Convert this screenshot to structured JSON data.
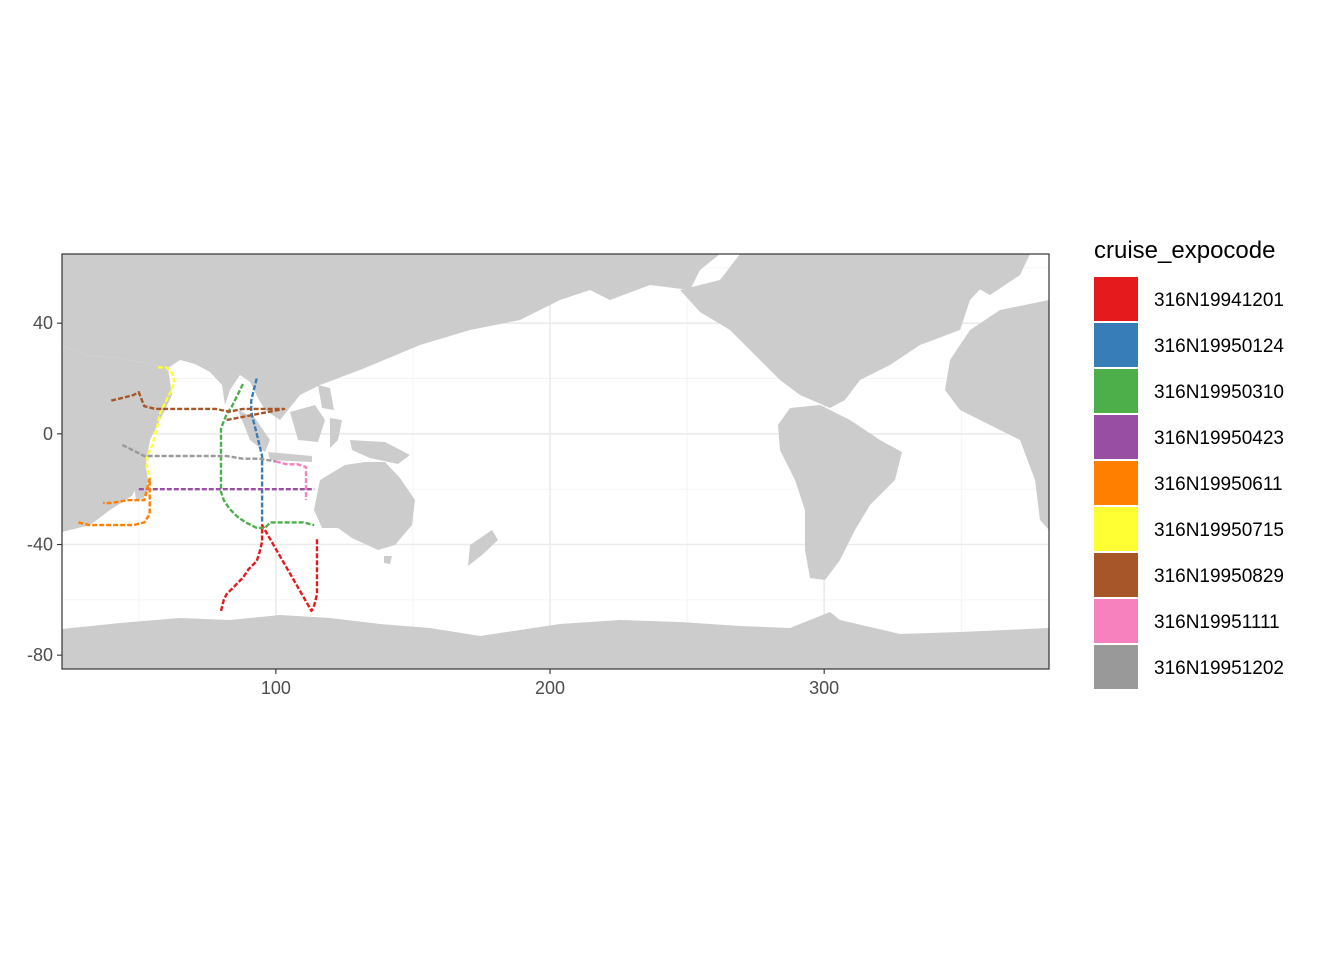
{
  "chart_data": {
    "type": "map",
    "xlim": [
      22,
      382
    ],
    "ylim": [
      -85,
      65
    ],
    "x_ticks": [
      {
        "value": 100,
        "label": "100"
      },
      {
        "value": 200,
        "label": "200"
      },
      {
        "value": 300,
        "label": "300"
      }
    ],
    "y_ticks": [
      {
        "value": 40,
        "label": "40"
      },
      {
        "value": 0,
        "label": "0"
      },
      {
        "value": -40,
        "label": "-40"
      },
      {
        "value": -80,
        "label": "-80"
      }
    ],
    "grid": true,
    "land_color": "#cccccc",
    "legend": {
      "title": "cruise_expocode",
      "position": "right",
      "entries": [
        {
          "label": "316N19941201",
          "color": "#E41A1C"
        },
        {
          "label": "316N19950124",
          "color": "#377EB8"
        },
        {
          "label": "316N19950310",
          "color": "#4DAF4A"
        },
        {
          "label": "316N19950423",
          "color": "#984EA3"
        },
        {
          "label": "316N19950611",
          "color": "#FF7F00"
        },
        {
          "label": "316N19950715",
          "color": "#FFFF33"
        },
        {
          "label": "316N19950829",
          "color": "#A65628"
        },
        {
          "label": "316N19951111",
          "color": "#F781BF"
        },
        {
          "label": "316N19951202",
          "color": "#999999"
        }
      ]
    },
    "series": [
      {
        "name": "316N19941201",
        "color": "#E41A1C",
        "points": [
          [
            80,
            -64
          ],
          [
            81,
            -60
          ],
          [
            82,
            -58
          ],
          [
            85,
            -55
          ],
          [
            88,
            -52
          ],
          [
            90,
            -49
          ],
          [
            93,
            -46
          ],
          [
            94,
            -43
          ],
          [
            95,
            -39
          ],
          [
            95,
            -36
          ],
          [
            95,
            -33
          ],
          [
            113,
            -64
          ],
          [
            114,
            -62
          ],
          [
            115,
            -58
          ],
          [
            115,
            -54
          ],
          [
            115,
            -50
          ],
          [
            115,
            -46
          ],
          [
            115,
            -42
          ],
          [
            115,
            -38
          ]
        ]
      },
      {
        "name": "316N19950124",
        "color": "#377EB8",
        "points": [
          [
            93,
            20
          ],
          [
            92,
            16
          ],
          [
            91,
            12
          ],
          [
            91,
            8
          ],
          [
            92,
            4
          ],
          [
            93,
            0
          ],
          [
            94,
            -4
          ],
          [
            95,
            -8
          ],
          [
            95,
            -12
          ],
          [
            95,
            -16
          ],
          [
            95,
            -20
          ],
          [
            95,
            -24
          ],
          [
            95,
            -28
          ],
          [
            95,
            -32
          ]
        ]
      },
      {
        "name": "316N19950310",
        "color": "#4DAF4A",
        "points": [
          [
            88,
            18
          ],
          [
            86,
            14
          ],
          [
            84,
            10
          ],
          [
            82,
            7
          ],
          [
            80,
            2
          ],
          [
            80,
            -3
          ],
          [
            80,
            -8
          ],
          [
            80,
            -13
          ],
          [
            80,
            -17
          ],
          [
            80,
            -21
          ],
          [
            81,
            -24
          ],
          [
            83,
            -27
          ],
          [
            86,
            -30
          ],
          [
            89,
            -32
          ],
          [
            93,
            -34
          ],
          [
            96,
            -34
          ],
          [
            98,
            -32
          ],
          [
            102,
            -32
          ],
          [
            106,
            -32
          ],
          [
            110,
            -32
          ],
          [
            114,
            -33
          ]
        ]
      },
      {
        "name": "316N19950423",
        "color": "#984EA3",
        "points": [
          [
            50,
            -20
          ],
          [
            56,
            -20
          ],
          [
            62,
            -20
          ],
          [
            68,
            -20
          ],
          [
            74,
            -20
          ],
          [
            80,
            -20
          ],
          [
            86,
            -20
          ],
          [
            92,
            -20
          ],
          [
            98,
            -20
          ],
          [
            104,
            -20
          ],
          [
            110,
            -20
          ],
          [
            114,
            -20
          ]
        ]
      },
      {
        "name": "316N19950611",
        "color": "#FF7F00",
        "points": [
          [
            28,
            -32
          ],
          [
            32,
            -33
          ],
          [
            36,
            -33
          ],
          [
            42,
            -33
          ],
          [
            48,
            -33
          ],
          [
            52,
            -32
          ],
          [
            54,
            -29
          ],
          [
            54,
            -24
          ],
          [
            54,
            -20
          ],
          [
            54,
            -16
          ],
          [
            52,
            -24
          ],
          [
            46,
            -24
          ],
          [
            40,
            -25
          ],
          [
            37,
            -25
          ]
        ]
      },
      {
        "name": "316N19950715",
        "color": "#FFFF33",
        "points": [
          [
            57,
            24
          ],
          [
            60,
            24
          ],
          [
            62,
            22
          ],
          [
            63,
            19
          ],
          [
            62,
            16
          ],
          [
            60,
            12
          ],
          [
            58,
            8
          ],
          [
            57,
            4
          ],
          [
            56,
            0
          ],
          [
            55,
            -4
          ],
          [
            53,
            -8
          ],
          [
            53,
            -12
          ],
          [
            54,
            -16
          ]
        ]
      },
      {
        "name": "316N19950829",
        "color": "#A65628",
        "points": [
          [
            40,
            12
          ],
          [
            44,
            13
          ],
          [
            48,
            14
          ],
          [
            50,
            15
          ],
          [
            52,
            10
          ],
          [
            56,
            9
          ],
          [
            62,
            9
          ],
          [
            68,
            9
          ],
          [
            75,
            9
          ],
          [
            78,
            9
          ],
          [
            83,
            8
          ],
          [
            88,
            9
          ],
          [
            94,
            9
          ],
          [
            100,
            9
          ],
          [
            103,
            9
          ],
          [
            82,
            5
          ]
        ]
      },
      {
        "name": "316N19951111",
        "color": "#F781BF",
        "points": [
          [
            100,
            -10
          ],
          [
            104,
            -11
          ],
          [
            108,
            -11
          ],
          [
            111,
            -12
          ],
          [
            111,
            -16
          ],
          [
            111,
            -20
          ],
          [
            111,
            -24
          ]
        ]
      },
      {
        "name": "316N19951202",
        "color": "#999999",
        "points": [
          [
            44,
            -4
          ],
          [
            48,
            -6
          ],
          [
            52,
            -8
          ],
          [
            58,
            -8
          ],
          [
            64,
            -8
          ],
          [
            70,
            -8
          ],
          [
            76,
            -8
          ],
          [
            82,
            -8
          ],
          [
            88,
            -9
          ],
          [
            94,
            -9
          ],
          [
            100,
            -10
          ]
        ]
      }
    ]
  }
}
